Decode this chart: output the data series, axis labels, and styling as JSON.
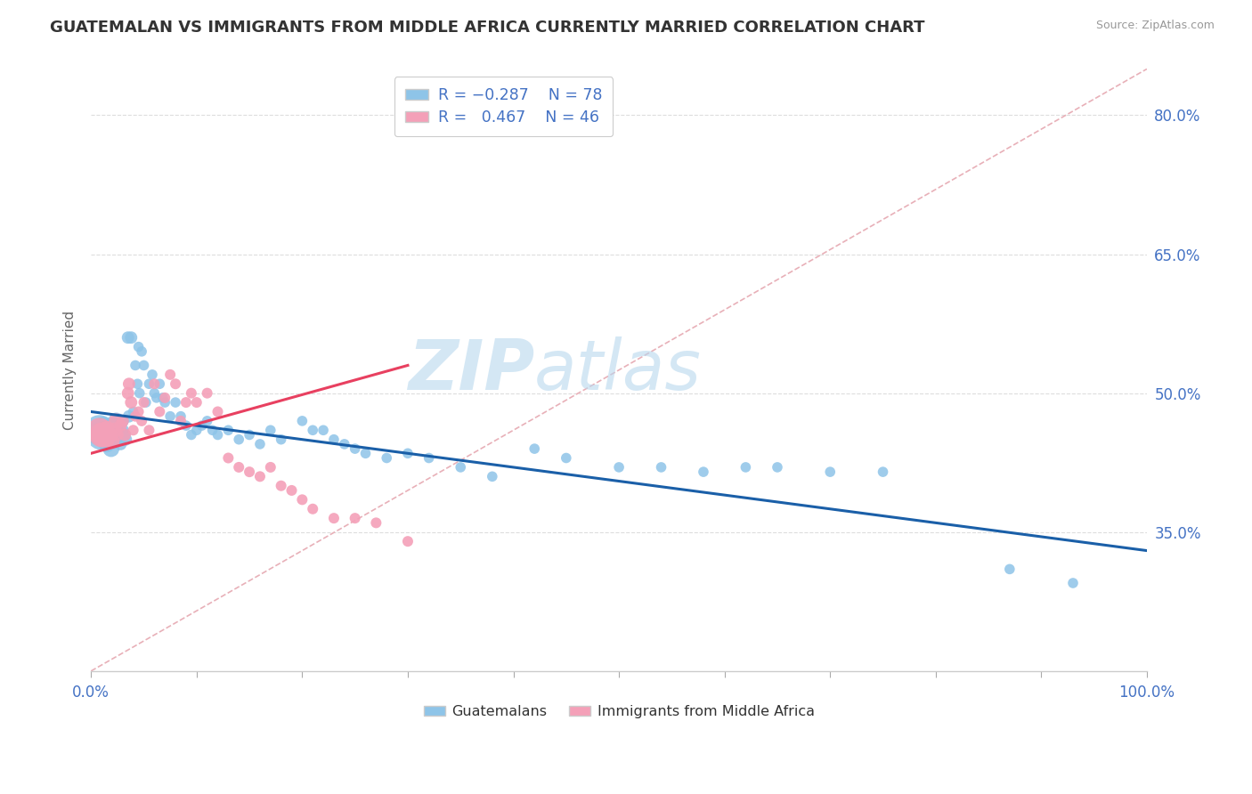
{
  "title": "GUATEMALAN VS IMMIGRANTS FROM MIDDLE AFRICA CURRENTLY MARRIED CORRELATION CHART",
  "source": "Source: ZipAtlas.com",
  "ylabel": "Currently Married",
  "xlim": [
    0.0,
    1.0
  ],
  "ylim": [
    0.2,
    0.85
  ],
  "yticks": [
    0.35,
    0.5,
    0.65,
    0.8
  ],
  "ytick_labels": [
    "35.0%",
    "50.0%",
    "65.0%",
    "80.0%"
  ],
  "blue_color": "#8ec4e8",
  "pink_color": "#f4a0b8",
  "blue_line_color": "#1a5fa8",
  "pink_line_color": "#e84060",
  "diagonal_color": "#e8b0b8",
  "watermark_color": "#cce4f4",
  "title_fontsize": 13,
  "label_fontsize": 11,
  "tick_fontsize": 12,
  "guatemalan_x": [
    0.008,
    0.01,
    0.012,
    0.015,
    0.015,
    0.016,
    0.017,
    0.018,
    0.019,
    0.02,
    0.022,
    0.022,
    0.024,
    0.025,
    0.026,
    0.027,
    0.028,
    0.03,
    0.03,
    0.032,
    0.033,
    0.035,
    0.036,
    0.038,
    0.04,
    0.042,
    0.044,
    0.045,
    0.046,
    0.048,
    0.05,
    0.052,
    0.055,
    0.058,
    0.06,
    0.062,
    0.065,
    0.068,
    0.07,
    0.075,
    0.08,
    0.085,
    0.09,
    0.095,
    0.1,
    0.105,
    0.11,
    0.115,
    0.12,
    0.13,
    0.14,
    0.15,
    0.16,
    0.17,
    0.18,
    0.2,
    0.21,
    0.22,
    0.23,
    0.24,
    0.25,
    0.26,
    0.28,
    0.3,
    0.32,
    0.35,
    0.38,
    0.42,
    0.45,
    0.5,
    0.54,
    0.58,
    0.62,
    0.65,
    0.7,
    0.75,
    0.87,
    0.93
  ],
  "guatemalan_y": [
    0.46,
    0.455,
    0.458,
    0.462,
    0.445,
    0.45,
    0.46,
    0.455,
    0.44,
    0.448,
    0.465,
    0.455,
    0.47,
    0.46,
    0.45,
    0.455,
    0.445,
    0.47,
    0.46,
    0.455,
    0.45,
    0.56,
    0.475,
    0.56,
    0.48,
    0.53,
    0.51,
    0.55,
    0.5,
    0.545,
    0.53,
    0.49,
    0.51,
    0.52,
    0.5,
    0.495,
    0.51,
    0.495,
    0.49,
    0.475,
    0.49,
    0.475,
    0.465,
    0.455,
    0.46,
    0.465,
    0.47,
    0.46,
    0.455,
    0.46,
    0.45,
    0.455,
    0.445,
    0.46,
    0.45,
    0.47,
    0.46,
    0.46,
    0.45,
    0.445,
    0.44,
    0.435,
    0.43,
    0.435,
    0.43,
    0.42,
    0.41,
    0.44,
    0.43,
    0.42,
    0.42,
    0.415,
    0.42,
    0.42,
    0.415,
    0.415,
    0.31,
    0.295
  ],
  "midafrica_x": [
    0.008,
    0.01,
    0.012,
    0.015,
    0.015,
    0.018,
    0.02,
    0.022,
    0.024,
    0.025,
    0.028,
    0.03,
    0.032,
    0.035,
    0.036,
    0.038,
    0.04,
    0.042,
    0.045,
    0.048,
    0.05,
    0.055,
    0.06,
    0.065,
    0.07,
    0.075,
    0.08,
    0.085,
    0.09,
    0.095,
    0.1,
    0.11,
    0.12,
    0.13,
    0.14,
    0.15,
    0.16,
    0.17,
    0.18,
    0.19,
    0.2,
    0.21,
    0.23,
    0.25,
    0.27,
    0.3
  ],
  "midafrica_y": [
    0.46,
    0.455,
    0.455,
    0.462,
    0.45,
    0.455,
    0.448,
    0.46,
    0.47,
    0.455,
    0.465,
    0.47,
    0.455,
    0.5,
    0.51,
    0.49,
    0.46,
    0.475,
    0.48,
    0.47,
    0.49,
    0.46,
    0.51,
    0.48,
    0.495,
    0.52,
    0.51,
    0.47,
    0.49,
    0.5,
    0.49,
    0.5,
    0.48,
    0.43,
    0.42,
    0.415,
    0.41,
    0.42,
    0.4,
    0.395,
    0.385,
    0.375,
    0.365,
    0.365,
    0.36,
    0.34
  ],
  "blue_line_x0": 0.0,
  "blue_line_y0": 0.48,
  "blue_line_x1": 1.0,
  "blue_line_y1": 0.33,
  "pink_line_x0": 0.0,
  "pink_line_y0": 0.435,
  "pink_line_x1": 0.3,
  "pink_line_y1": 0.53
}
